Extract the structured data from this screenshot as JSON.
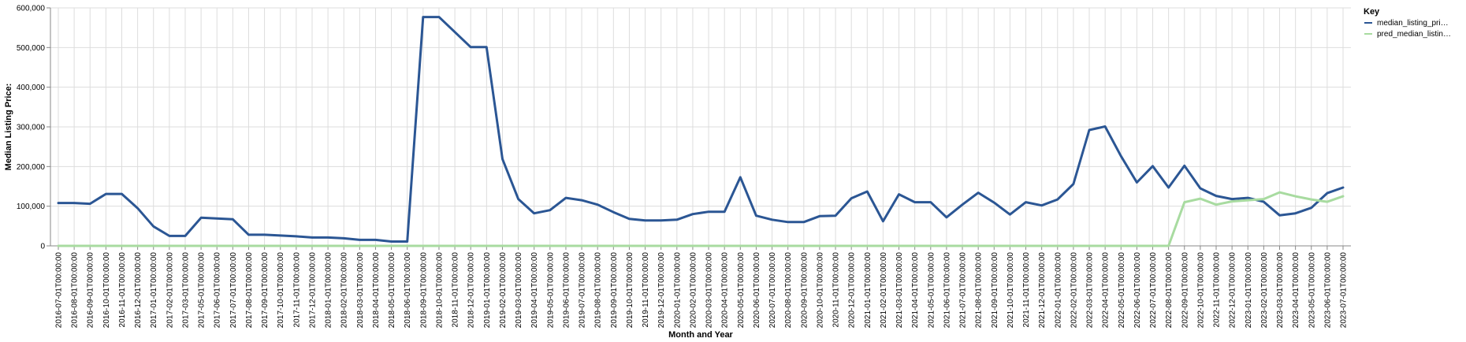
{
  "chart_data": {
    "type": "line",
    "xlabel": "Month and Year",
    "ylabel": "Median Listing Price:",
    "ylim": [
      0,
      600000
    ],
    "yticks": [
      0,
      100000,
      200000,
      300000,
      400000,
      500000,
      600000
    ],
    "ytick_labels": [
      "0",
      "100,000",
      "200,000",
      "300,000",
      "400,000",
      "500,000",
      "600,000"
    ],
    "grid": true,
    "legend": {
      "title": "Key",
      "placement": "top-right"
    },
    "x": [
      "2016-07-01T00:00:00",
      "2016-08-01T00:00:00",
      "2016-09-01T00:00:00",
      "2016-10-01T00:00:00",
      "2016-11-01T00:00:00",
      "2016-12-01T00:00:00",
      "2017-01-01T00:00:00",
      "2017-02-01T00:00:00",
      "2017-03-01T00:00:00",
      "2017-05-01T00:00:00",
      "2017-06-01T00:00:00",
      "2017-07-01T00:00:00",
      "2017-08-01T00:00:00",
      "2017-09-01T00:00:00",
      "2017-10-01T00:00:00",
      "2017-11-01T00:00:00",
      "2017-12-01T00:00:00",
      "2018-01-01T00:00:00",
      "2018-02-01T00:00:00",
      "2018-03-01T00:00:00",
      "2018-04-01T00:00:00",
      "2018-05-01T00:00:00",
      "2018-06-01T00:00:00",
      "2018-09-01T00:00:00",
      "2018-10-01T00:00:00",
      "2018-11-01T00:00:00",
      "2018-12-01T00:00:00",
      "2019-01-01T00:00:00",
      "2019-02-01T00:00:00",
      "2019-03-01T00:00:00",
      "2019-04-01T00:00:00",
      "2019-05-01T00:00:00",
      "2019-06-01T00:00:00",
      "2019-07-01T00:00:00",
      "2019-08-01T00:00:00",
      "2019-09-01T00:00:00",
      "2019-10-01T00:00:00",
      "2019-11-01T00:00:00",
      "2019-12-01T00:00:00",
      "2020-01-01T00:00:00",
      "2020-02-01T00:00:00",
      "2020-03-01T00:00:00",
      "2020-04-01T00:00:00",
      "2020-05-01T00:00:00",
      "2020-06-01T00:00:00",
      "2020-07-01T00:00:00",
      "2020-08-01T00:00:00",
      "2020-09-01T00:00:00",
      "2020-10-01T00:00:00",
      "2020-11-01T00:00:00",
      "2020-12-01T00:00:00",
      "2021-01-01T00:00:00",
      "2021-02-01T00:00:00",
      "2021-03-01T00:00:00",
      "2021-04-01T00:00:00",
      "2021-05-01T00:00:00",
      "2021-06-01T00:00:00",
      "2021-07-01T00:00:00",
      "2021-08-01T00:00:00",
      "2021-09-01T00:00:00",
      "2021-10-01T00:00:00",
      "2021-11-01T00:00:00",
      "2021-12-01T00:00:00",
      "2022-01-01T00:00:00",
      "2022-02-01T00:00:00",
      "2022-03-01T00:00:00",
      "2022-04-01T00:00:00",
      "2022-05-01T00:00:00",
      "2022-06-01T00:00:00",
      "2022-07-01T00:00:00",
      "2022-08-01T00:00:00",
      "2022-09-01T00:00:00",
      "2022-10-01T00:00:00",
      "2022-11-01T00:00:00",
      "2022-12-01T00:00:00",
      "2023-01-01T00:00:00",
      "2023-02-01T00:00:00",
      "2023-03-01T00:00:00",
      "2023-04-01T00:00:00",
      "2023-05-01T00:00:00",
      "2023-06-01T00:00:00",
      "2023-07-01T00:00:00"
    ],
    "series": [
      {
        "name": "median_listing_pri…",
        "color": "#2b5694",
        "values": [
          108000,
          108000,
          106000,
          131000,
          131000,
          95000,
          49000,
          25000,
          25000,
          71000,
          69000,
          67000,
          28000,
          28000,
          26000,
          24000,
          21000,
          21000,
          19000,
          15000,
          15000,
          11000,
          11000,
          577000,
          577000,
          539000,
          501000,
          501000,
          219000,
          118000,
          82000,
          90000,
          121000,
          115000,
          104000,
          85000,
          68000,
          64000,
          64000,
          66000,
          80000,
          86000,
          86000,
          173000,
          76000,
          66000,
          60000,
          60000,
          75000,
          76000,
          120000,
          137000,
          62000,
          130000,
          110000,
          110000,
          72000,
          104000,
          134000,
          109000,
          79000,
          110000,
          102000,
          117000,
          156000,
          292000,
          301000,
          226000,
          160000,
          201000,
          147000,
          202000,
          145000,
          126000,
          118000,
          121000,
          111000,
          77000,
          82000,
          96000,
          133000,
          147000
        ]
      },
      {
        "name": "pred_median_listin…",
        "color": "#a8dba0",
        "values": [
          0,
          0,
          0,
          0,
          0,
          0,
          0,
          0,
          0,
          0,
          0,
          0,
          0,
          0,
          0,
          0,
          0,
          0,
          0,
          0,
          0,
          0,
          0,
          0,
          0,
          0,
          0,
          0,
          0,
          0,
          0,
          0,
          0,
          0,
          0,
          0,
          0,
          0,
          0,
          0,
          0,
          0,
          0,
          0,
          0,
          0,
          0,
          0,
          0,
          0,
          0,
          0,
          0,
          0,
          0,
          0,
          0,
          0,
          0,
          0,
          0,
          0,
          0,
          0,
          0,
          0,
          0,
          0,
          0,
          0,
          0,
          110000,
          119000,
          104000,
          112000,
          115000,
          118000,
          135000,
          125000,
          117000,
          111000,
          125000
        ]
      }
    ]
  }
}
